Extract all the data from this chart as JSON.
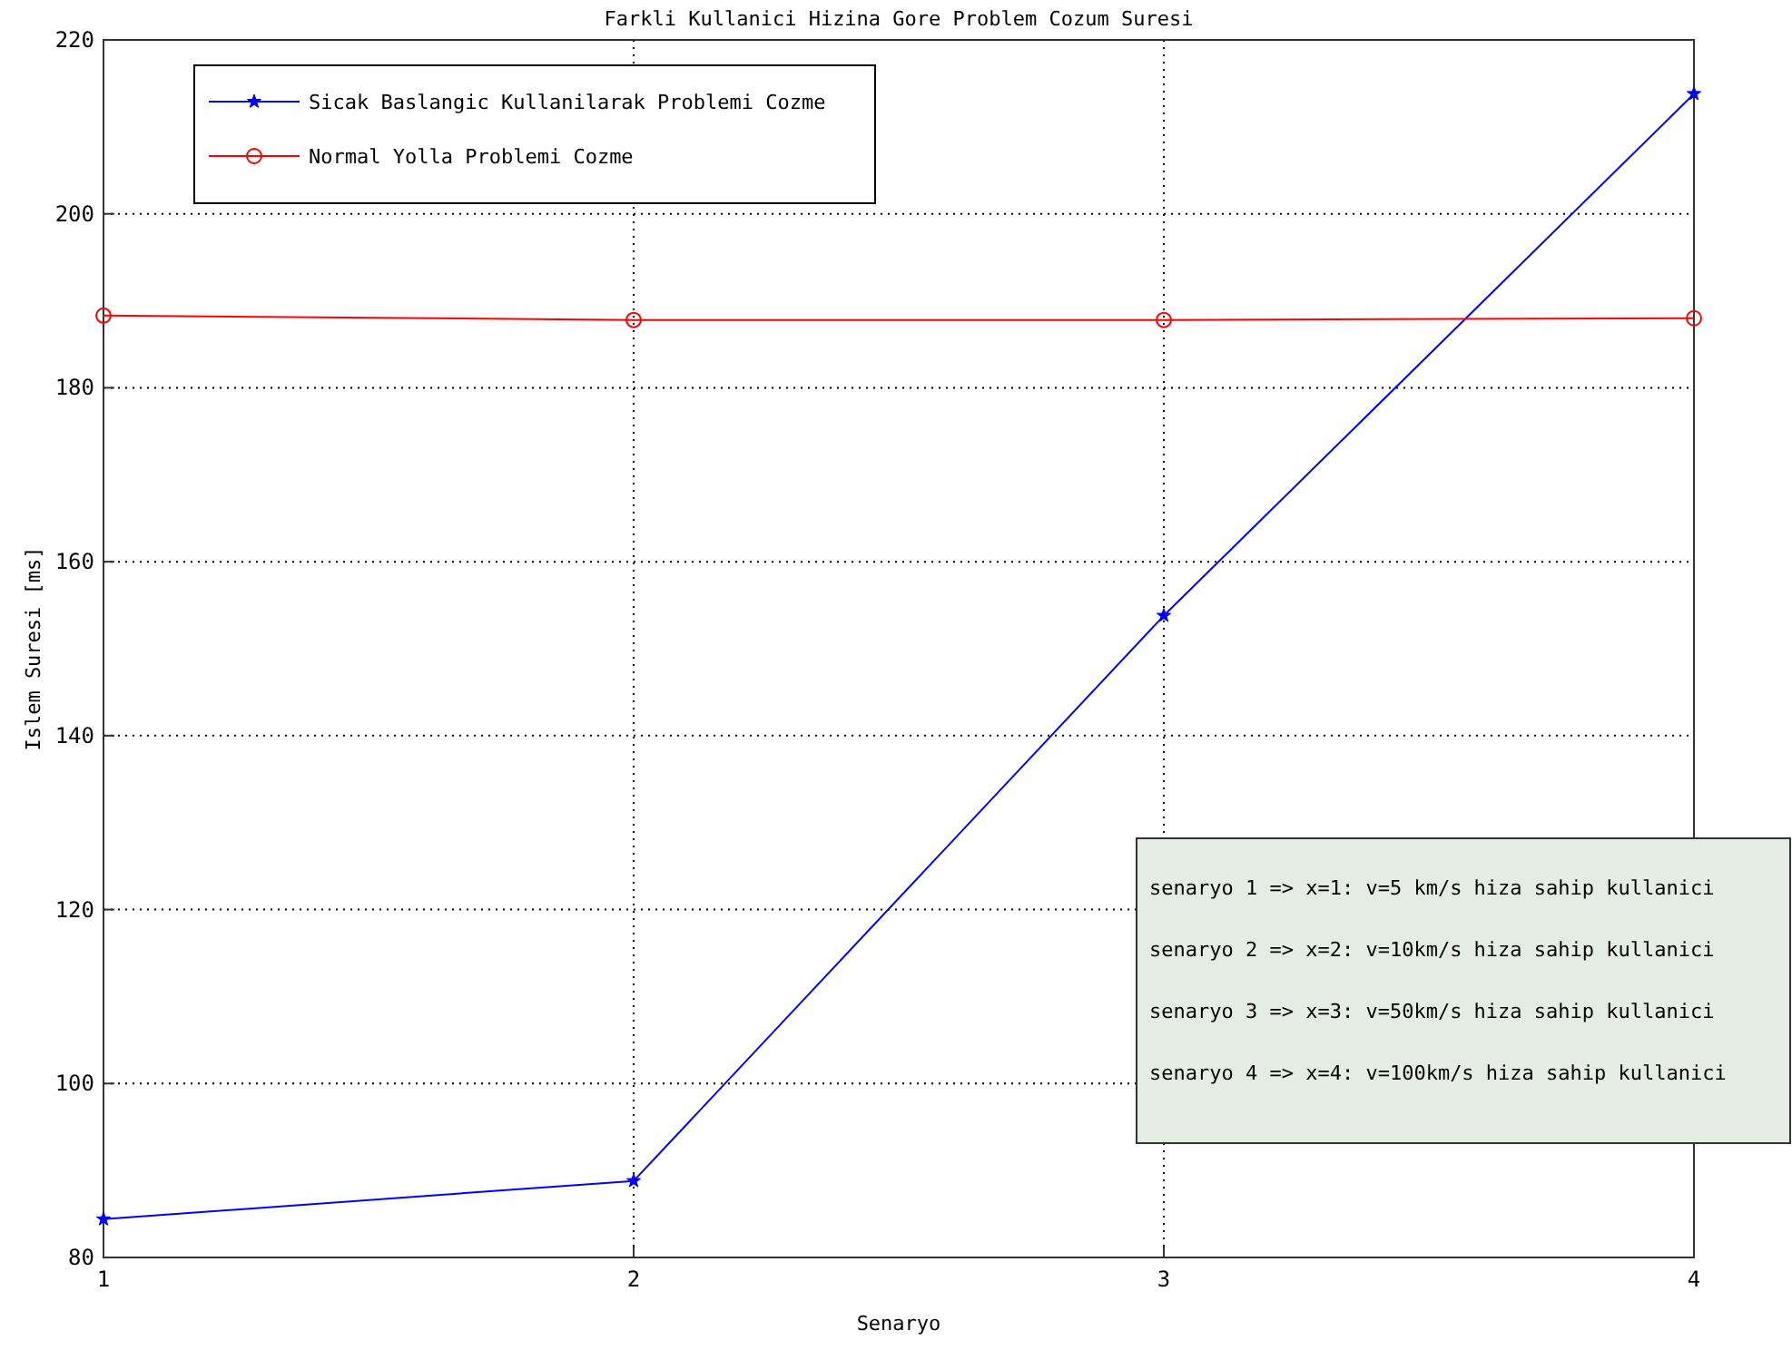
{
  "chart_data": {
    "type": "line",
    "title": "Farkli Kullanici Hizina Gore Problem Cozum Suresi",
    "xlabel": "Senaryo",
    "ylabel": "Islem Suresi [ms]",
    "x": [
      1,
      2,
      3,
      4
    ],
    "series": [
      {
        "name": "Sicak Baslangic Kullanilarak Problemi Cozme",
        "color": "#0000ff",
        "values": [
          84.4,
          88.8,
          153.8,
          213.8
        ],
        "marker": "star"
      },
      {
        "name": "Normal Yolla Problemi Cozme",
        "color": "#ff0000",
        "values": [
          188.3,
          187.8,
          187.8,
          188.0
        ],
        "marker": "circle"
      }
    ],
    "xlim": [
      1,
      4
    ],
    "xticks": [
      1,
      2,
      3,
      4
    ],
    "ylim": [
      80,
      220
    ],
    "yticks": [
      80,
      100,
      120,
      140,
      160,
      180,
      200,
      220
    ],
    "grid": true,
    "legend": "top left",
    "line_style": "solid",
    "annotations": [
      "senaryo 1 => x=1: v=5 km/s hiza sahip kullanici",
      "senaryo 2 => x=2: v=10km/s hiza sahip kullanici",
      "senaryo 3 => x=3: v=50km/s hiza sahip kullanici",
      "senaryo 4 => x=4: v=100km/s hiza sahip kullanici"
    ]
  }
}
